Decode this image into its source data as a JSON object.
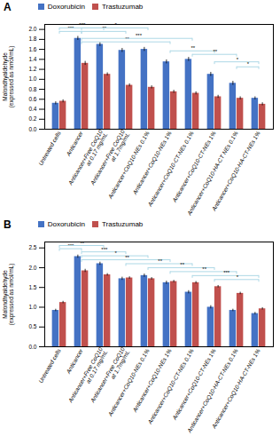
{
  "chart_data": [
    {
      "type": "bar",
      "title": "A",
      "categories": [
        "Untreated cells",
        "Anticancer",
        "Anticancer+Free CoQ10\nat 0.17 mg/mL",
        "Anticancer+Free CoQ10\nat 1.7mg/mL",
        "Anticancer+CoQ10-NEs 0.1%",
        "Anticancer+CoQ10-NEs 1%",
        "Anticancer+CoQ10-CT-NEs 0.1%",
        "Anticancer+CoQ10-CT-NEs 1%",
        "Anticancer+CoQ10-HA-CT NEs 0.1%",
        "Anticancer+CoQ10-HA-CT-NEs 1%"
      ],
      "series": [
        {
          "name": "Doxorubicin",
          "color": "#4472C4",
          "values": [
            0.52,
            1.82,
            1.7,
            1.58,
            1.6,
            1.35,
            1.4,
            1.1,
            0.92,
            0.62
          ],
          "errors": [
            0.03,
            0.04,
            0.04,
            0.04,
            0.04,
            0.04,
            0.04,
            0.04,
            0.04,
            0.03
          ]
        },
        {
          "name": "Trastuzumab",
          "color": "#C0504D",
          "values": [
            0.56,
            1.32,
            1.1,
            0.88,
            0.84,
            0.75,
            0.72,
            0.65,
            0.62,
            0.5
          ],
          "errors": [
            0.03,
            0.04,
            0.03,
            0.03,
            0.03,
            0.03,
            0.03,
            0.03,
            0.03,
            0.03
          ]
        }
      ],
      "ylabel": "Malondhyaldehyde\n(expressed as nmol/mL)",
      "ylim": [
        0,
        2.1
      ],
      "yticks": [
        {
          "value": 0,
          "label": "0.0"
        },
        0.2,
        0.4,
        0.6,
        0.8,
        {
          "value": 1.0,
          "label": "1.0"
        },
        1.2,
        1.4,
        1.6,
        1.8,
        {
          "value": 2.0,
          "label": "2.0"
        }
      ],
      "legend": "top",
      "significance_bars": [
        {
          "from": "Untreated cells",
          "to": "Anticancer",
          "y": 1.96,
          "label": "***",
          "color": "#ADD8E6"
        },
        {
          "from": "Untreated cells",
          "to": "Anticancer+Free CoQ10\nat 0.17 mg/mL",
          "y": 2.03,
          "label": "***",
          "color": "#ADD8E6"
        },
        {
          "from": "Anticancer",
          "to": "Anticancer+Free CoQ10\nat 1.7mg/mL",
          "y": 1.96,
          "label": "**",
          "color": "#ADD8E6"
        },
        {
          "from": "Anticancer",
          "to": "Anticancer+CoQ10-NEs 0.1%",
          "y": 2.03,
          "label": "*",
          "color": "#ADD8E6"
        },
        {
          "from": "Anticancer",
          "to": "Anticancer+CoQ10-NEs 1%",
          "y": 1.75,
          "label": "**",
          "color": "#ADD8E6"
        },
        {
          "from": "Anticancer",
          "to": "Anticancer+CoQ10-CT-NEs 0.1%",
          "y": 1.82,
          "label": "***",
          "color": "#ADD8E6"
        },
        {
          "from": "Anticancer+CoQ10-NEs 1%",
          "to": "Anticancer+CoQ10-CT-NEs 1%",
          "y": 1.57,
          "label": "**",
          "color": "#ADD8E6"
        },
        {
          "from": "Anticancer+CoQ10-CT-NEs 0.1%",
          "to": "Anticancer+CoQ10-HA-CT NEs 0.1%",
          "y": 1.5,
          "label": "**",
          "color": "#ADD8E6"
        },
        {
          "from": "Anticancer+CoQ10-CT-NEs 1%",
          "to": "Anticancer+CoQ10-HA-CT-NEs 1%",
          "y": 1.35,
          "label": "*",
          "color": "#ADD8E6"
        },
        {
          "from": "Anticancer+CoQ10-HA-CT NEs 0.1%",
          "to": "Anticancer+CoQ10-HA-CT-NEs 1%",
          "y": 1.25,
          "label": "*",
          "color": "#ADD8E6"
        }
      ]
    },
    {
      "type": "bar",
      "title": "B",
      "categories": [
        "Untreated cells",
        "Anticancer",
        "Anticancer+Free CoQ10\nat 0.17 mg/mL",
        "Anticancer+Free CoQ10\nat 1.7mg/mL",
        "Anticancer+CoQ10-NEs 0.1%",
        "Anticancer+CoQ10-NEs 1%",
        "Anticancer+CoQ10-CT-NEs 0.1%",
        "Anticancer+CoQ10-CT-NEs 1%",
        "Anticancer+CoQ10-HA-CT-NEs 0.1%",
        "Anticancer+CoQ10-HA-CT-NEs 1%"
      ],
      "series": [
        {
          "name": "Doxorubicin",
          "color": "#4472C4",
          "values": [
            0.92,
            2.28,
            2.1,
            1.72,
            1.8,
            1.62,
            1.38,
            1.0,
            0.92,
            0.84
          ],
          "errors": [
            0.03,
            0.04,
            0.04,
            0.04,
            0.04,
            0.04,
            0.04,
            0.04,
            0.03,
            0.03
          ]
        },
        {
          "name": "Trastuzumab",
          "color": "#C0504D",
          "values": [
            1.12,
            1.92,
            1.82,
            1.74,
            1.72,
            1.65,
            1.62,
            1.52,
            1.35,
            0.96
          ],
          "errors": [
            0.03,
            0.04,
            0.03,
            0.03,
            0.03,
            0.03,
            0.03,
            0.03,
            0.03,
            0.03
          ]
        }
      ],
      "ylabel": "Malondhyaldehyde\n(expressed as nmol/mL)",
      "ylim": [
        0,
        2.65
      ],
      "yticks": [
        {
          "value": 0,
          "label": "0.0"
        },
        0.5,
        {
          "value": 1.0,
          "label": "1.0"
        },
        1.5,
        {
          "value": 2.0,
          "label": "2.0"
        },
        2.5
      ],
      "legend": "top",
      "significance_bars": [
        {
          "from": "Untreated cells",
          "to": "Anticancer",
          "y": 2.48,
          "label": "***",
          "color": "#ADD8E6"
        },
        {
          "from": "Untreated cells",
          "to": "Anticancer+Free CoQ10\nat 0.17 mg/mL",
          "y": 2.56,
          "label": "**",
          "color": "#ADD8E6"
        },
        {
          "from": "Anticancer",
          "to": "Anticancer+Free CoQ10\nat 1.7mg/mL",
          "y": 2.4,
          "label": "***",
          "color": "#ADD8E6"
        },
        {
          "from": "Anticancer",
          "to": "Anticancer+CoQ10-NEs 0.1%",
          "y": 2.3,
          "label": "*",
          "color": "#ADD8E6"
        },
        {
          "from": "Anticancer",
          "to": "Anticancer+CoQ10-NEs 1%",
          "y": 2.2,
          "label": "**",
          "color": "#ADD8E6"
        },
        {
          "from": "Anticancer+Free CoQ10\nat 1.7mg/mL",
          "to": "Anticancer+CoQ10-CT-NEs 0.1%",
          "y": 2.1,
          "label": "**",
          "color": "#ADD8E6"
        },
        {
          "from": "Anticancer+CoQ10-NEs 0.1%",
          "to": "Anticancer+CoQ10-CT-NEs 1%",
          "y": 2.0,
          "label": "**",
          "color": "#ADD8E6"
        },
        {
          "from": "Anticancer+CoQ10-NEs 1%",
          "to": "Anticancer+CoQ10-HA-CT-NEs 0.1%",
          "y": 1.9,
          "label": "**",
          "color": "#ADD8E6"
        },
        {
          "from": "Anticancer+CoQ10-CT-NEs 0.1%",
          "to": "Anticancer+CoQ10-HA-CT-NEs 1%",
          "y": 1.8,
          "label": "***",
          "color": "#ADD8E6"
        },
        {
          "from": "Anticancer+CoQ10-CT-NEs 1%",
          "to": "Anticancer+CoQ10-HA-CT-NEs 1%",
          "y": 1.7,
          "label": "*",
          "color": "#ADD8E6"
        }
      ]
    }
  ]
}
